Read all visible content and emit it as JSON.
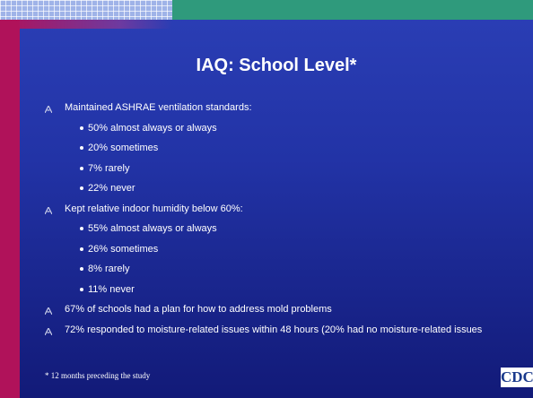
{
  "title": "IAQ: School Level*",
  "bullets": [
    {
      "text": "Maintained ASHRAE ventilation standards:",
      "sub": [
        "50% almost always or always",
        "20% sometimes",
        "7% rarely",
        "22% never"
      ]
    },
    {
      "text": "Kept relative indoor humidity below 60%:",
      "sub": [
        "55% almost always or always",
        "26% sometimes",
        "8% rarely",
        "11% never"
      ]
    },
    {
      "text": "67% of schools had a plan for how to address mold problems",
      "sub": []
    },
    {
      "text": "72% responded to moisture-related issues within 48 hours (20% had no moisture-related issues",
      "sub": []
    }
  ],
  "footnote": "* 12 months preceding the study",
  "logo": "CDC"
}
